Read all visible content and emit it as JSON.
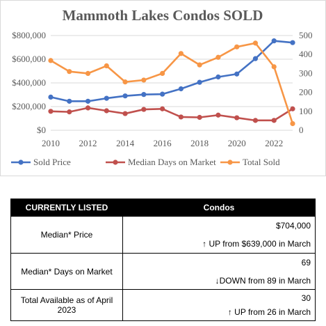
{
  "chart_data": {
    "type": "line",
    "title": "Mammoth Lakes Condos SOLD",
    "x": [
      2010,
      2011,
      2012,
      2013,
      2014,
      2015,
      2016,
      2017,
      2018,
      2019,
      2020,
      2021,
      2022,
      2023
    ],
    "x_ticks": [
      "2010",
      "2012",
      "2014",
      "2016",
      "2018",
      "2020",
      "2022"
    ],
    "y_left_ticks": [
      "$0",
      "$200,000",
      "$400,000",
      "$600,000",
      "$800,000"
    ],
    "y_right_ticks": [
      "0",
      "100",
      "200",
      "300",
      "400",
      "500"
    ],
    "ylim_left": [
      0,
      800000
    ],
    "ylim_right": [
      0,
      500
    ],
    "grid": true,
    "legend_position": "bottom",
    "series": [
      {
        "name": "Sold Price",
        "axis": "left",
        "color": "#4472c4",
        "values": [
          280000,
          245000,
          245000,
          270000,
          290000,
          302000,
          305000,
          350000,
          405000,
          450000,
          475000,
          605000,
          755000,
          740000
        ]
      },
      {
        "name": "Median Days on Market",
        "axis": "right",
        "color": "#c0504d",
        "values": [
          100,
          97,
          118,
          103,
          88,
          110,
          113,
          70,
          68,
          80,
          66,
          52,
          52,
          113
        ]
      },
      {
        "name": "Total Sold",
        "axis": "right",
        "color": "#f79646",
        "values": [
          368,
          310,
          300,
          340,
          255,
          265,
          300,
          405,
          345,
          385,
          440,
          460,
          335,
          35
        ]
      }
    ]
  },
  "table": {
    "header_left": "CURRENTLY LISTED",
    "header_right": "Condos",
    "rows": [
      {
        "label": "Median* Price",
        "value": "$704,000",
        "change": "↑ UP from $639,000 in March"
      },
      {
        "label": "Median* Days on Market",
        "value": "69",
        "change": "↓DOWN from 89 in March"
      },
      {
        "label": "Total Available as of April 2023",
        "value": "30",
        "change": "↑ UP from 26 in March"
      }
    ]
  }
}
